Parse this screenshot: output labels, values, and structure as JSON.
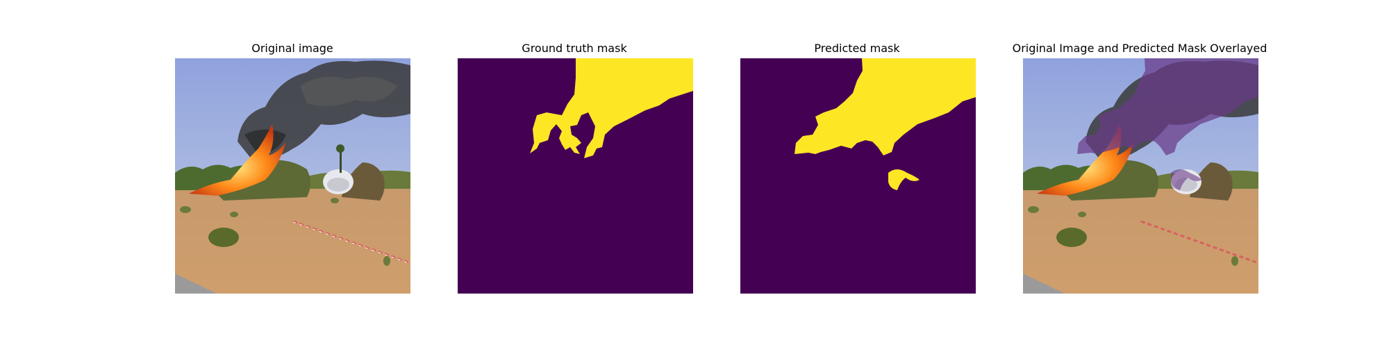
{
  "panels": [
    {
      "title": "Original image"
    },
    {
      "title": "Ground truth mask"
    },
    {
      "title": "Predicted mask"
    },
    {
      "title": "Original Image and Predicted Mask Overlayed"
    }
  ],
  "colors": {
    "mask_background": "#440154",
    "mask_foreground": "#fde725",
    "overlay": "#5b2a6e"
  }
}
